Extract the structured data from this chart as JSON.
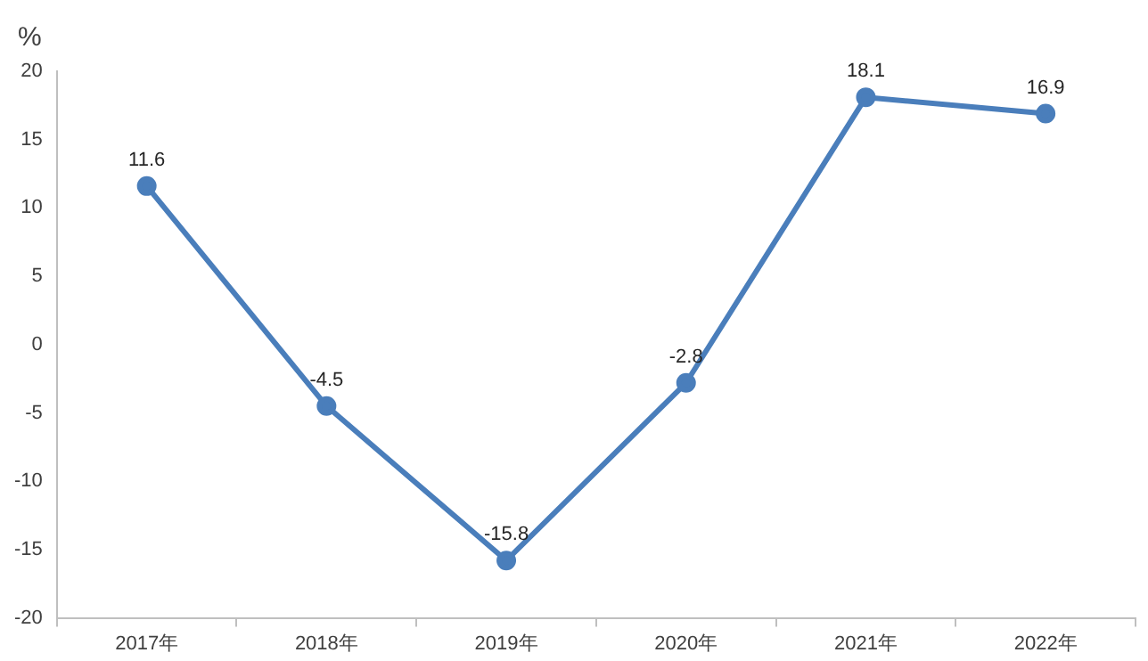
{
  "chart_data": {
    "type": "line",
    "ylabel": "%",
    "categories": [
      "2017年",
      "2018年",
      "2019年",
      "2020年",
      "2021年",
      "2022年"
    ],
    "series": [
      {
        "color": "#4a7ebb",
        "values": [
          11.6,
          -4.5,
          -15.8,
          -2.8,
          18.1,
          16.9
        ]
      }
    ],
    "ylim": [
      -20,
      20
    ],
    "yticks": [
      -20,
      -15,
      -10,
      -5,
      0,
      5,
      10,
      15,
      20
    ],
    "grid": false,
    "legend": false,
    "marker": "circle",
    "line_style": "solid",
    "data_labels": true
  }
}
